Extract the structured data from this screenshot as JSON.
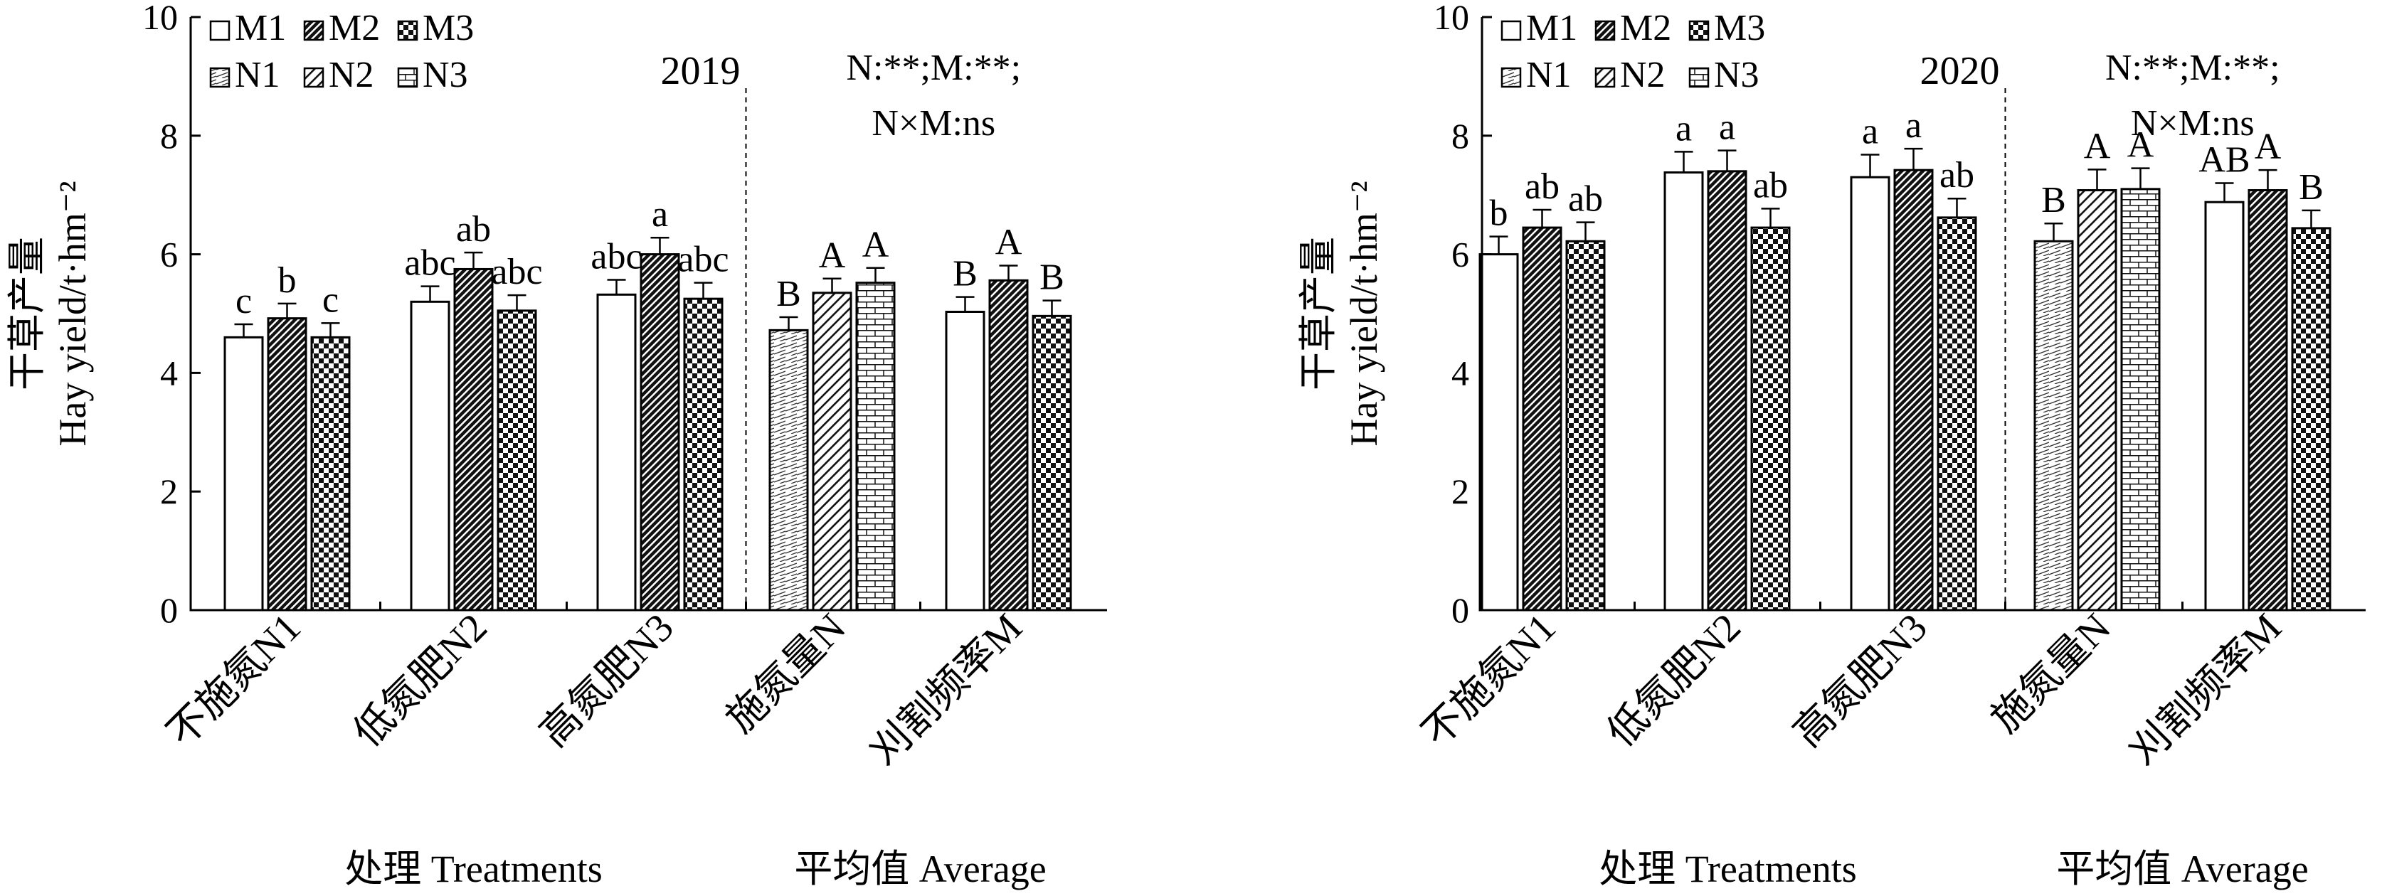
{
  "chart_data": [
    {
      "type": "bar",
      "title": "",
      "year_label": "2019",
      "stats_line1": "N:**;M:**;",
      "stats_line2": "N×M:ns",
      "ylabel_cn": "干草产量",
      "ylabel_en": "Hay yield/t·hm⁻²",
      "ylim": [
        0,
        10
      ],
      "yticks": [
        "0",
        "2",
        "4",
        "6",
        "8",
        "10"
      ],
      "categories": [
        "不施氮N1",
        "低氮肥N2",
        "高氮肥N3",
        "施氮量N",
        "刈割频率M"
      ],
      "group_labels": [
        "处理 Treatments",
        "平均值 Average"
      ],
      "legend": [
        "M1",
        "M2",
        "M3",
        "N1",
        "N2",
        "N3"
      ],
      "series_values": [
        [
          4.6,
          4.92,
          4.6
        ],
        [
          5.2,
          5.75,
          5.05
        ],
        [
          5.32,
          6.0,
          5.25
        ],
        [
          4.72,
          5.35,
          5.52
        ],
        [
          5.03,
          5.56,
          4.96
        ]
      ],
      "series_errors": [
        [
          0.22,
          0.25,
          0.24
        ],
        [
          0.26,
          0.28,
          0.26
        ],
        [
          0.25,
          0.28,
          0.27
        ],
        [
          0.22,
          0.24,
          0.25
        ],
        [
          0.25,
          0.25,
          0.26
        ]
      ],
      "series_patterns": [
        [
          "M1",
          "M2",
          "M3"
        ],
        [
          "M1",
          "M2",
          "M3"
        ],
        [
          "M1",
          "M2",
          "M3"
        ],
        [
          "N1",
          "N2",
          "N3"
        ],
        [
          "M1",
          "M2",
          "M3"
        ]
      ],
      "series_letters": [
        [
          "c",
          "b",
          "c"
        ],
        [
          "abc",
          "ab",
          "abc"
        ],
        [
          "abc",
          "a",
          "abc"
        ],
        [
          "B",
          "A",
          "A"
        ],
        [
          "B",
          "A",
          "B"
        ]
      ]
    },
    {
      "type": "bar",
      "title": "",
      "year_label": "2020",
      "stats_line1": "N:**;M:**;",
      "stats_line2": "N×M:ns",
      "ylabel_cn": "干草产量",
      "ylabel_en": "Hay yield/t·hm⁻²",
      "ylim": [
        0,
        10
      ],
      "yticks": [
        "0",
        "2",
        "4",
        "6",
        "8",
        "10"
      ],
      "categories": [
        "不施氮N1",
        "低氮肥N2",
        "高氮肥N3",
        "施氮量N",
        "刈割频率M"
      ],
      "group_labels": [
        "处理 Treatments",
        "平均值 Average"
      ],
      "legend": [
        "M1",
        "M2",
        "M3",
        "N1",
        "N2",
        "N3"
      ],
      "series_values": [
        [
          6.0,
          6.45,
          6.22
        ],
        [
          7.38,
          7.4,
          6.45
        ],
        [
          7.3,
          7.42,
          6.62
        ],
        [
          6.22,
          7.08,
          7.1
        ],
        [
          6.88,
          7.08,
          6.44
        ]
      ],
      "series_errors": [
        [
          0.3,
          0.3,
          0.32
        ],
        [
          0.35,
          0.35,
          0.32
        ],
        [
          0.38,
          0.36,
          0.32
        ],
        [
          0.3,
          0.35,
          0.35
        ],
        [
          0.32,
          0.34,
          0.3
        ]
      ],
      "series_patterns": [
        [
          "M1",
          "M2",
          "M3"
        ],
        [
          "M1",
          "M2",
          "M3"
        ],
        [
          "M1",
          "M2",
          "M3"
        ],
        [
          "N1",
          "N2",
          "N3"
        ],
        [
          "M1",
          "M2",
          "M3"
        ]
      ],
      "series_letters": [
        [
          "b",
          "ab",
          "ab"
        ],
        [
          "a",
          "a",
          "ab"
        ],
        [
          "a",
          "a",
          "ab"
        ],
        [
          "B",
          "A",
          "A"
        ],
        [
          "AB",
          "A",
          "B"
        ]
      ]
    }
  ]
}
